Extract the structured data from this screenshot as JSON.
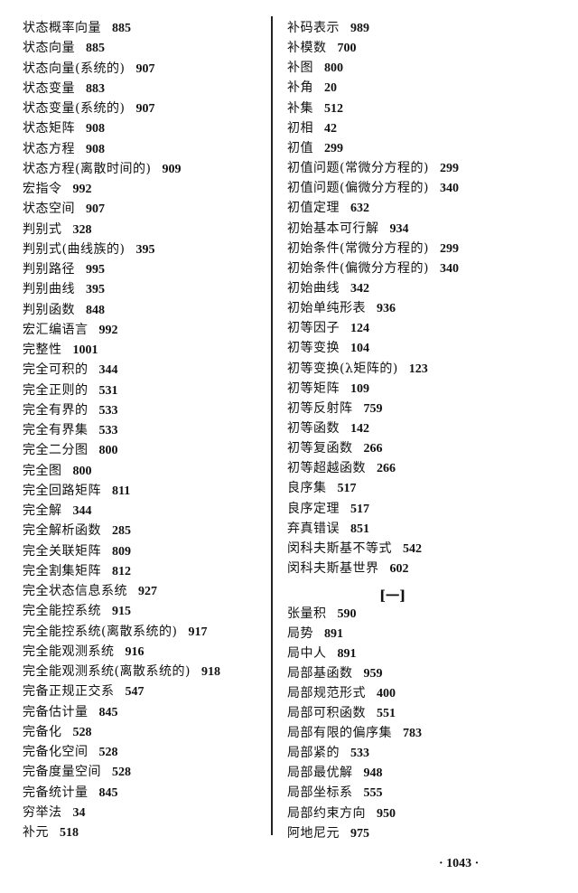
{
  "left_column": [
    {
      "term": "状态概率向量",
      "page": "885"
    },
    {
      "term": "状态向量",
      "page": "885"
    },
    {
      "term": "状态向量(系统的)",
      "page": "907"
    },
    {
      "term": "状态变量",
      "page": "883"
    },
    {
      "term": "状态变量(系统的)",
      "page": "907"
    },
    {
      "term": "状态矩阵",
      "page": "908"
    },
    {
      "term": "状态方程",
      "page": "908"
    },
    {
      "term": "状态方程(离散时间的)",
      "page": "909"
    },
    {
      "term": "宏指令",
      "page": "992"
    },
    {
      "term": "状态空间",
      "page": "907"
    },
    {
      "term": "判别式",
      "page": "328"
    },
    {
      "term": "判别式(曲线族的)",
      "page": "395"
    },
    {
      "term": "判别路径",
      "page": "995"
    },
    {
      "term": "判别曲线",
      "page": "395"
    },
    {
      "term": "判别函数",
      "page": "848"
    },
    {
      "term": "宏汇编语言",
      "page": "992"
    },
    {
      "term": "完整性",
      "page": "1001"
    },
    {
      "term": "完全可积的",
      "page": "344"
    },
    {
      "term": "完全正则的",
      "page": "531"
    },
    {
      "term": "完全有界的",
      "page": "533"
    },
    {
      "term": "完全有界集",
      "page": "533"
    },
    {
      "term": "完全二分图",
      "page": "800"
    },
    {
      "term": "完全图",
      "page": "800"
    },
    {
      "term": "完全回路矩阵",
      "page": "811"
    },
    {
      "term": "完全解",
      "page": "344"
    },
    {
      "term": "完全解析函数",
      "page": "285"
    },
    {
      "term": "完全关联矩阵",
      "page": "809"
    },
    {
      "term": "完全割集矩阵",
      "page": "812"
    },
    {
      "term": "完全状态信息系统",
      "page": "927"
    },
    {
      "term": "完全能控系统",
      "page": "915"
    },
    {
      "term": "完全能控系统(离散系统的)",
      "page": "917"
    },
    {
      "term": "完全能观测系统",
      "page": "916"
    },
    {
      "term": "完全能观测系统(离散系统的)",
      "page": "918"
    },
    {
      "term": "完备正规正交系",
      "page": "547"
    },
    {
      "term": "完备估计量",
      "page": "845"
    },
    {
      "term": "完备化",
      "page": "528"
    },
    {
      "term": "完备化空间",
      "page": "528"
    },
    {
      "term": "完备度量空间",
      "page": "528"
    },
    {
      "term": "完备统计量",
      "page": "845"
    },
    {
      "term": "穷举法",
      "page": "34"
    },
    {
      "term": "补元",
      "page": "518"
    }
  ],
  "right_column": [
    {
      "term": "补码表示",
      "page": "989"
    },
    {
      "term": "补模数",
      "page": "700"
    },
    {
      "term": "补图",
      "page": "800"
    },
    {
      "term": "补角",
      "page": "20"
    },
    {
      "term": "补集",
      "page": "512"
    },
    {
      "term": "初相",
      "page": "42"
    },
    {
      "term": "初值",
      "page": "299"
    },
    {
      "term": "初值问题(常微分方程的)",
      "page": "299"
    },
    {
      "term": "初值问题(偏微分方程的)",
      "page": "340"
    },
    {
      "term": "初值定理",
      "page": "632"
    },
    {
      "term": "初始基本可行解",
      "page": "934"
    },
    {
      "term": "初始条件(常微分方程的)",
      "page": "299"
    },
    {
      "term": "初始条件(偏微分方程的)",
      "page": "340"
    },
    {
      "term": "初始曲线",
      "page": "342"
    },
    {
      "term": "初始单纯形表",
      "page": "936"
    },
    {
      "term": "初等因子",
      "page": "124"
    },
    {
      "term": "初等变换",
      "page": "104"
    },
    {
      "term": "初等变换(λ矩阵的)",
      "page": "123"
    },
    {
      "term": "初等矩阵",
      "page": "109"
    },
    {
      "term": "初等反射阵",
      "page": "759"
    },
    {
      "term": "初等函数",
      "page": "142"
    },
    {
      "term": "初等复函数",
      "page": "266"
    },
    {
      "term": "初等超越函数",
      "page": "266"
    },
    {
      "term": "良序集",
      "page": "517"
    },
    {
      "term": "良序定理",
      "page": "517"
    },
    {
      "term": "弃真错误",
      "page": "851"
    },
    {
      "term": "闵科夫斯基不等式",
      "page": "542"
    },
    {
      "term": "闵科夫斯基世界",
      "page": "602"
    }
  ],
  "section_heading": "[一]",
  "section_entries": [
    {
      "term": "张量积",
      "page": "590"
    },
    {
      "term": "局势",
      "page": "891"
    },
    {
      "term": "局中人",
      "page": "891"
    },
    {
      "term": "局部基函数",
      "page": "959"
    },
    {
      "term": "局部规范形式",
      "page": "400"
    },
    {
      "term": "局部可积函数",
      "page": "551"
    },
    {
      "term": "局部有限的偏序集",
      "page": "783"
    },
    {
      "term": "局部紧的",
      "page": "533"
    },
    {
      "term": "局部最优解",
      "page": "948"
    },
    {
      "term": "局部坐标系",
      "page": "555"
    },
    {
      "term": "局部约束方向",
      "page": "950"
    },
    {
      "term": "阿地尼元",
      "page": "975"
    }
  ],
  "page_number": "· 1043 ·"
}
